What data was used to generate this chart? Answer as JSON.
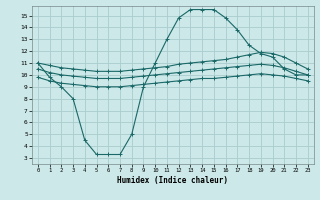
{
  "xlabel": "Humidex (Indice chaleur)",
  "bg_color": "#cce8e8",
  "grid_color": "#aacccc",
  "line_color": "#1a6868",
  "xlim": [
    -0.5,
    23.5
  ],
  "ylim": [
    2.5,
    15.8
  ],
  "yticks": [
    3,
    4,
    5,
    6,
    7,
    8,
    9,
    10,
    11,
    12,
    13,
    14,
    15
  ],
  "xticks": [
    0,
    1,
    2,
    3,
    4,
    5,
    6,
    7,
    8,
    9,
    10,
    11,
    12,
    13,
    14,
    15,
    16,
    17,
    18,
    19,
    20,
    21,
    22,
    23
  ],
  "line1_x": [
    0,
    1,
    2,
    3,
    4,
    5,
    6,
    7,
    8,
    9,
    10,
    11,
    12,
    13,
    14,
    15,
    16,
    17,
    18,
    19,
    20,
    21,
    22,
    23
  ],
  "line1_y": [
    11.0,
    9.8,
    9.0,
    8.0,
    4.5,
    3.3,
    3.3,
    3.3,
    5.0,
    9.0,
    11.0,
    13.0,
    14.8,
    15.5,
    15.5,
    15.5,
    14.8,
    13.8,
    12.5,
    11.8,
    11.5,
    10.5,
    10.0,
    10.0
  ],
  "line2_x": [
    0,
    1,
    2,
    3,
    4,
    5,
    6,
    7,
    8,
    9,
    10,
    11,
    12,
    13,
    14,
    15,
    16,
    17,
    18,
    19,
    20,
    21,
    22,
    23
  ],
  "line2_y": [
    11.0,
    10.8,
    10.6,
    10.5,
    10.4,
    10.3,
    10.3,
    10.3,
    10.4,
    10.5,
    10.6,
    10.7,
    10.9,
    11.0,
    11.1,
    11.2,
    11.3,
    11.5,
    11.7,
    11.9,
    11.8,
    11.5,
    11.0,
    10.5
  ],
  "line3_x": [
    0,
    1,
    2,
    3,
    4,
    5,
    6,
    7,
    8,
    9,
    10,
    11,
    12,
    13,
    14,
    15,
    16,
    17,
    18,
    19,
    20,
    21,
    22,
    23
  ],
  "line3_y": [
    10.5,
    10.2,
    10.0,
    9.9,
    9.8,
    9.7,
    9.7,
    9.7,
    9.8,
    9.9,
    10.0,
    10.1,
    10.2,
    10.3,
    10.4,
    10.5,
    10.6,
    10.7,
    10.8,
    10.9,
    10.8,
    10.6,
    10.3,
    10.0
  ],
  "line4_x": [
    0,
    1,
    2,
    3,
    4,
    5,
    6,
    7,
    8,
    9,
    10,
    11,
    12,
    13,
    14,
    15,
    16,
    17,
    18,
    19,
    20,
    21,
    22,
    23
  ],
  "line4_y": [
    9.8,
    9.5,
    9.3,
    9.2,
    9.1,
    9.0,
    9.0,
    9.0,
    9.1,
    9.2,
    9.3,
    9.4,
    9.5,
    9.6,
    9.7,
    9.7,
    9.8,
    9.9,
    10.0,
    10.1,
    10.0,
    9.9,
    9.7,
    9.5
  ]
}
